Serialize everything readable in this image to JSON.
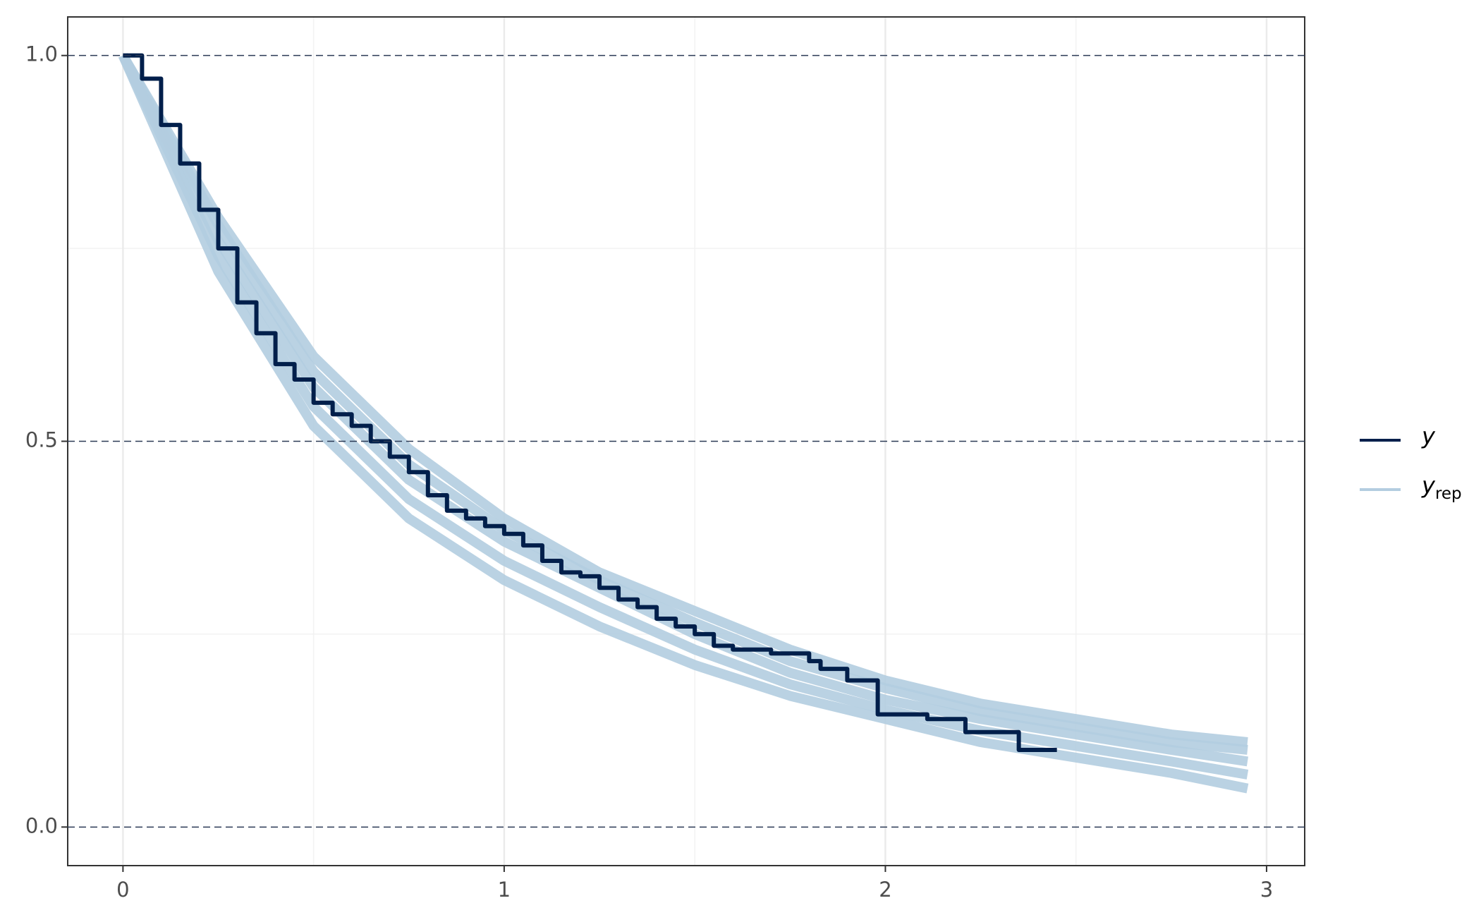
{
  "chart_data": {
    "type": "line",
    "xlim": [
      -0.145,
      3.1
    ],
    "ylim": [
      -0.05,
      1.05
    ],
    "xticks": [
      0,
      1,
      2,
      3
    ],
    "xminor": [
      0.5,
      1.5,
      2.5
    ],
    "yticks": [
      {
        "value": 0,
        "label": "0.0"
      },
      {
        "value": 0.5,
        "label": "0.5"
      },
      {
        "value": 1,
        "label": "1.0"
      }
    ],
    "yminor": [
      0.25,
      0.75
    ],
    "grid": true,
    "legend": "right",
    "series": [
      {
        "name": "y",
        "color": "#011f4b",
        "drawstyle": "steps-post",
        "x": [
          0,
          0.05,
          0.1,
          0.15,
          0.2,
          0.25,
          0.3,
          0.35,
          0.4,
          0.45,
          0.5,
          0.55,
          0.6,
          0.65,
          0.7,
          0.75,
          0.8,
          0.85,
          0.9,
          0.95,
          1.0,
          1.05,
          1.1,
          1.15,
          1.2,
          1.25,
          1.3,
          1.35,
          1.4,
          1.45,
          1.5,
          1.55,
          1.6,
          1.7,
          1.8,
          1.83,
          1.9,
          1.98,
          2.11,
          2.21,
          2.35,
          2.45
        ],
        "values": [
          1.0,
          0.97,
          0.91,
          0.86,
          0.8,
          0.75,
          0.68,
          0.64,
          0.6,
          0.58,
          0.55,
          0.535,
          0.52,
          0.5,
          0.48,
          0.46,
          0.43,
          0.41,
          0.4,
          0.39,
          0.38,
          0.365,
          0.345,
          0.33,
          0.325,
          0.31,
          0.295,
          0.285,
          0.27,
          0.26,
          0.25,
          0.235,
          0.23,
          0.225,
          0.215,
          0.205,
          0.19,
          0.146,
          0.14,
          0.123,
          0.1,
          0.1
        ]
      },
      {
        "name": "y",
        "subscript": "rep",
        "color": "#b3cde0",
        "x": [
          0,
          0.25,
          0.5,
          0.75,
          1,
          1.25,
          1.5,
          1.75,
          2,
          2.25,
          2.5,
          2.75,
          2.95
        ],
        "values": [
          [
            1,
            0.79,
            0.61,
            0.49,
            0.4,
            0.33,
            0.28,
            0.23,
            0.19,
            0.16,
            0.14,
            0.12,
            0.11
          ],
          [
            1,
            0.78,
            0.59,
            0.47,
            0.385,
            0.32,
            0.265,
            0.215,
            0.18,
            0.15,
            0.13,
            0.11,
            0.1
          ],
          [
            1,
            0.76,
            0.57,
            0.45,
            0.37,
            0.31,
            0.25,
            0.2,
            0.165,
            0.14,
            0.12,
            0.1,
            0.085
          ],
          [
            1,
            0.74,
            0.545,
            0.425,
            0.345,
            0.285,
            0.23,
            0.185,
            0.152,
            0.125,
            0.105,
            0.085,
            0.068
          ],
          [
            1,
            0.72,
            0.52,
            0.4,
            0.32,
            0.26,
            0.21,
            0.17,
            0.14,
            0.11,
            0.09,
            0.07,
            0.05
          ]
        ]
      }
    ]
  }
}
